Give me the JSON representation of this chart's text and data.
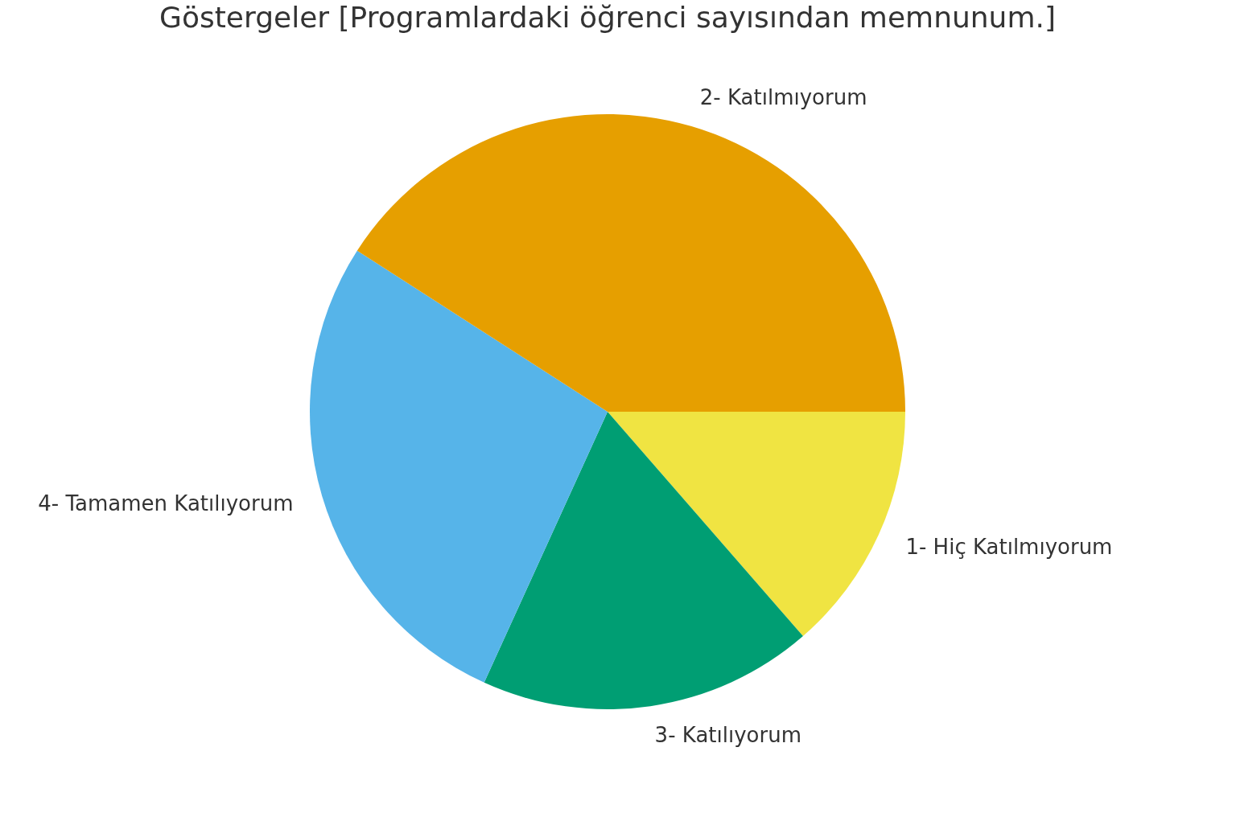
{
  "chart_data": {
    "type": "pie",
    "title": "Göstergeler [Programlardaki öğrenci sayısından memnunum.]",
    "categories": [
      "1- Hiç Katılmıyorum",
      "3- Katılıyorum",
      "4- Tamamen Katılıyorum",
      "2- Katılmıyorum"
    ],
    "values": [
      13.6,
      18.2,
      27.3,
      40.9
    ],
    "colors": [
      "#f0e442",
      "#009e73",
      "#56b4e9",
      "#e69f00"
    ]
  }
}
